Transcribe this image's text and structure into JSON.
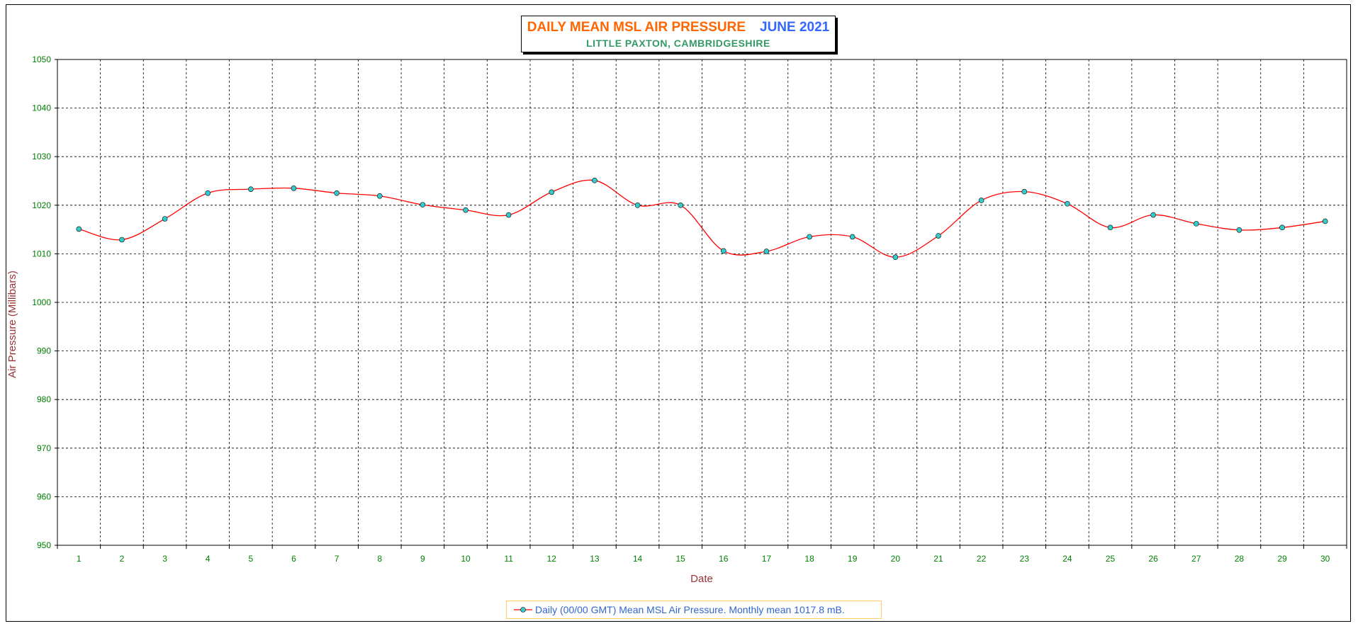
{
  "chart_data": {
    "type": "line",
    "title": "DAILY MEAN MSL AIR PRESSURE",
    "title_period": "JUNE 2021",
    "subtitle": "LITTLE PAXTON, CAMBRIDGESHIRE",
    "xlabel": "Date",
    "ylabel": "Air Pressure (Millibars)",
    "ylim": [
      950,
      1050
    ],
    "yticks": [
      950,
      960,
      970,
      980,
      990,
      1000,
      1010,
      1020,
      1030,
      1040,
      1050
    ],
    "grid": true,
    "legend_position": "bottom-center",
    "categories": [
      "1",
      "2",
      "3",
      "4",
      "5",
      "6",
      "7",
      "8",
      "9",
      "10",
      "11",
      "12",
      "13",
      "14",
      "15",
      "16",
      "17",
      "18",
      "19",
      "20",
      "21",
      "22",
      "23",
      "24",
      "25",
      "26",
      "27",
      "28",
      "29",
      "30"
    ],
    "series": [
      {
        "name": "Daily (00/00 GMT) Mean MSL Air Pressure. Monthly mean 1017.8 mB.",
        "color": "#ff0000",
        "marker_color": "#33cccc",
        "values": [
          1015.1,
          1012.9,
          1017.2,
          1022.5,
          1023.3,
          1023.5,
          1022.5,
          1021.9,
          1020.1,
          1019.0,
          1018.0,
          1022.7,
          1025.1,
          1020.0,
          1020.0,
          1010.6,
          1010.5,
          1013.5,
          1013.5,
          1009.3,
          1013.7,
          1021.0,
          1022.8,
          1020.3,
          1015.4,
          1018.0,
          1016.2,
          1014.9,
          1015.4,
          1016.7
        ]
      }
    ]
  }
}
